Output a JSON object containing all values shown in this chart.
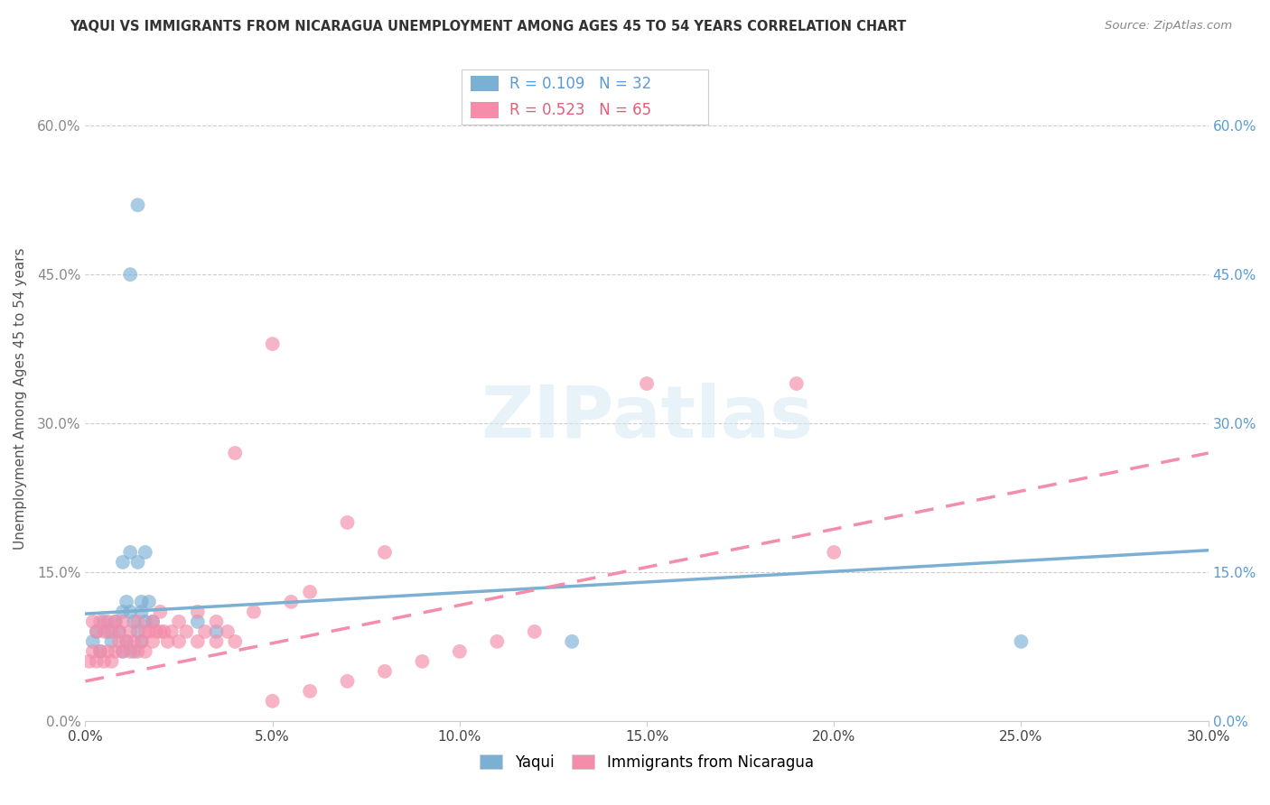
{
  "title": "YAQUI VS IMMIGRANTS FROM NICARAGUA UNEMPLOYMENT AMONG AGES 45 TO 54 YEARS CORRELATION CHART",
  "source": "Source: ZipAtlas.com",
  "ylabel": "Unemployment Among Ages 45 to 54 years",
  "xlim": [
    0.0,
    0.3
  ],
  "ylim": [
    0.0,
    0.65
  ],
  "xticks": [
    0.0,
    0.05,
    0.1,
    0.15,
    0.2,
    0.25,
    0.3
  ],
  "yticks": [
    0.0,
    0.15,
    0.3,
    0.45,
    0.6
  ],
  "yaqui_color": "#7bafd4",
  "nicaragua_color": "#f48caa",
  "yaqui_R": 0.109,
  "yaqui_N": 32,
  "nicaragua_R": 0.523,
  "nicaragua_N": 65,
  "yaqui_line_x0": 0.0,
  "yaqui_line_y0": 0.108,
  "yaqui_line_x1": 0.3,
  "yaqui_line_y1": 0.172,
  "nic_line_x0": 0.0,
  "nic_line_y0": 0.04,
  "nic_line_x1": 0.3,
  "nic_line_y1": 0.27,
  "yaqui_x": [
    0.002,
    0.003,
    0.004,
    0.005,
    0.006,
    0.007,
    0.008,
    0.009,
    0.01,
    0.011,
    0.012,
    0.013,
    0.014,
    0.015,
    0.016,
    0.018,
    0.01,
    0.012,
    0.014,
    0.016,
    0.015,
    0.017,
    0.012,
    0.014,
    0.03,
    0.035,
    0.25,
    0.13,
    0.01,
    0.011,
    0.013,
    0.015
  ],
  "yaqui_y": [
    0.08,
    0.09,
    0.07,
    0.1,
    0.09,
    0.08,
    0.1,
    0.09,
    0.11,
    0.12,
    0.11,
    0.1,
    0.09,
    0.11,
    0.1,
    0.1,
    0.16,
    0.17,
    0.16,
    0.17,
    0.12,
    0.12,
    0.45,
    0.52,
    0.1,
    0.09,
    0.08,
    0.08,
    0.07,
    0.08,
    0.07,
    0.08
  ],
  "nic_x": [
    0.001,
    0.002,
    0.003,
    0.004,
    0.005,
    0.006,
    0.007,
    0.008,
    0.009,
    0.01,
    0.011,
    0.012,
    0.013,
    0.014,
    0.015,
    0.016,
    0.017,
    0.018,
    0.019,
    0.02,
    0.021,
    0.022,
    0.023,
    0.025,
    0.027,
    0.03,
    0.032,
    0.035,
    0.038,
    0.04,
    0.002,
    0.003,
    0.004,
    0.005,
    0.006,
    0.007,
    0.008,
    0.009,
    0.01,
    0.012,
    0.014,
    0.016,
    0.018,
    0.02,
    0.025,
    0.03,
    0.035,
    0.04,
    0.045,
    0.05,
    0.055,
    0.06,
    0.07,
    0.08,
    0.09,
    0.1,
    0.11,
    0.12,
    0.05,
    0.06,
    0.15,
    0.19,
    0.2,
    0.07,
    0.08
  ],
  "nic_y": [
    0.06,
    0.07,
    0.06,
    0.07,
    0.06,
    0.07,
    0.06,
    0.07,
    0.08,
    0.07,
    0.08,
    0.07,
    0.08,
    0.07,
    0.08,
    0.07,
    0.09,
    0.08,
    0.09,
    0.09,
    0.09,
    0.08,
    0.09,
    0.08,
    0.09,
    0.08,
    0.09,
    0.08,
    0.09,
    0.08,
    0.1,
    0.09,
    0.1,
    0.09,
    0.1,
    0.09,
    0.1,
    0.09,
    0.1,
    0.09,
    0.1,
    0.09,
    0.1,
    0.11,
    0.1,
    0.11,
    0.1,
    0.27,
    0.11,
    0.02,
    0.12,
    0.03,
    0.04,
    0.05,
    0.06,
    0.07,
    0.08,
    0.09,
    0.38,
    0.13,
    0.34,
    0.34,
    0.17,
    0.2,
    0.17
  ]
}
